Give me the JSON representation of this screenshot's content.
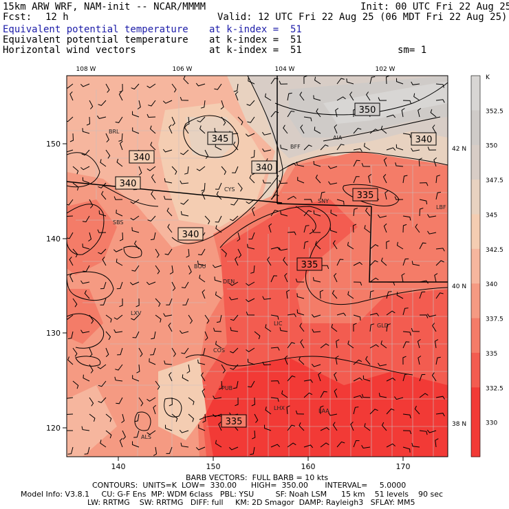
{
  "header": {
    "model_title": "15km ARW WRF, NAM-init -- NCAR/MMMM",
    "init": "Init: 00 UTC Fri 22 Aug 25",
    "fcst_label": "Fcst:",
    "fcst_value": "12 h",
    "valid": "Valid: 12 UTC Fri 22 Aug 25 (06 MDT Fri 22 Aug 25)",
    "fields": [
      {
        "name": "Equivalent potential temperature",
        "level": "at k-index =  51"
      },
      {
        "name": "Equivalent potential temperature",
        "level": "at k-index =  51"
      },
      {
        "name": "Horizontal wind vectors",
        "level": "at k-index =  51"
      }
    ],
    "smoothing": "sm= 1"
  },
  "colors": {
    "blue_text": "#1c1ca8",
    "scale": [
      "#f23a36",
      "#f35c50",
      "#f47c68",
      "#f59a82",
      "#f6b69e",
      "#f4cdb2",
      "#e8d2c0",
      "#d8cdc6",
      "#cfcbc8",
      "#d8d6d4"
    ]
  },
  "chart_data": {
    "type": "heatmap",
    "description_units": "K",
    "x_ticks": [
      "140",
      "150",
      "160",
      "170"
    ],
    "y_ticks": [
      "120",
      "130",
      "140",
      "150"
    ],
    "lon_ticks": [
      "108 W",
      "106 W",
      "104 W",
      "102 W"
    ],
    "lat_ticks": [
      "42 N",
      "40 N",
      "38 N"
    ],
    "colorbar": {
      "unit": "K",
      "labels": [
        "352.5",
        "350",
        "347.5",
        "345",
        "342.5",
        "340",
        "337.5",
        "335",
        "332.5",
        "330"
      ]
    },
    "contour_labels": [
      "350",
      "345",
      "340",
      "340",
      "340",
      "340",
      "340",
      "335",
      "335",
      "335"
    ],
    "stations": [
      "BRL",
      "BFF",
      "AIA",
      "CYS",
      "SNY",
      "LBF",
      "SBS",
      "BOU",
      "DEN",
      "LXV",
      "LIC",
      "GLD",
      "COS",
      "PUB",
      "LAA",
      "LHX",
      "ALS"
    ],
    "contours": {
      "units": "K",
      "low": "330.00",
      "high": "350.00",
      "interval": "5.0000"
    }
  },
  "footer": {
    "line1": "BARB VECTORS:  FULL BARB = 10 kts",
    "line2": "CONTOURS:  UNITS=K  LOW=  330.00      HIGH=  350.00       INTERVAL=     5.0000",
    "line3": "Model Info: V3.8.1     CU: G-F Ens  MP: WDM 6class   PBL: YSU         SF: Noah LSM      15 km    51 levels    90 sec",
    "line4": "LW: RRTMG    SW: RRTMG   DIFF: full     KM: 2D Smagor  DAMP: Rayleigh3   SFLAY: MM5"
  }
}
